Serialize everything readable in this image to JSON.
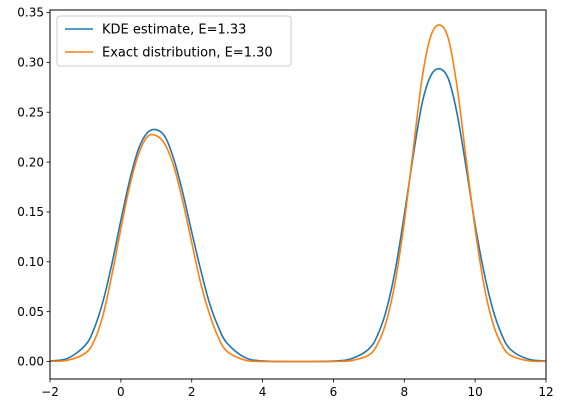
{
  "chart_data": {
    "type": "line",
    "title": "",
    "xlabel": "",
    "ylabel": "",
    "xlim": [
      -2,
      12
    ],
    "ylim": [
      -0.0175,
      0.3525
    ],
    "x_ticks": [
      -2,
      0,
      2,
      4,
      6,
      8,
      10,
      12
    ],
    "x_tick_labels": [
      "−2",
      "0",
      "2",
      "4",
      "6",
      "8",
      "10",
      "12"
    ],
    "y_ticks": [
      0.0,
      0.05,
      0.1,
      0.15,
      0.2,
      0.25,
      0.3,
      0.35
    ],
    "y_tick_labels": [
      "0.00",
      "0.05",
      "0.10",
      "0.15",
      "0.20",
      "0.25",
      "0.30",
      "0.35"
    ],
    "grid": false,
    "legend_position": "top-left",
    "x": [
      -2.0,
      -1.5,
      -1.0,
      -0.75,
      -0.5,
      -0.25,
      0.0,
      0.25,
      0.5,
      0.75,
      1.0,
      1.25,
      1.5,
      1.75,
      2.0,
      2.25,
      2.5,
      2.75,
      3.0,
      3.5,
      4.0,
      5.0,
      6.0,
      6.5,
      7.0,
      7.25,
      7.5,
      7.75,
      8.0,
      8.25,
      8.5,
      8.75,
      9.0,
      9.25,
      9.5,
      9.75,
      10.0,
      10.25,
      10.5,
      10.75,
      11.0,
      11.5,
      12.0
    ],
    "series": [
      {
        "name": "KDE estimate, E=1.33",
        "color": "#1f77b4",
        "values": [
          0.0006,
          0.0032,
          0.0165,
          0.0335,
          0.0608,
          0.0985,
          0.1416,
          0.1819,
          0.2133,
          0.2295,
          0.2325,
          0.2252,
          0.2023,
          0.1689,
          0.1299,
          0.0925,
          0.0588,
          0.0347,
          0.0182,
          0.0041,
          0.0006,
          0.0,
          0.0005,
          0.0028,
          0.0126,
          0.0268,
          0.0524,
          0.0926,
          0.1471,
          0.2058,
          0.2584,
          0.2868,
          0.2935,
          0.283,
          0.2468,
          0.1934,
          0.137,
          0.0896,
          0.0523,
          0.0271,
          0.012,
          0.0024,
          0.0006
        ]
      },
      {
        "name": "Exact distribution, E=1.30",
        "color": "#ff7f0e",
        "values": [
          0.0002,
          0.0013,
          0.0085,
          0.021,
          0.047,
          0.0875,
          0.133,
          0.1761,
          0.208,
          0.2255,
          0.2265,
          0.2175,
          0.1951,
          0.1602,
          0.1195,
          0.079,
          0.0478,
          0.0243,
          0.0101,
          0.0015,
          0.0001,
          0.0,
          0.0001,
          0.001,
          0.0065,
          0.0178,
          0.041,
          0.081,
          0.14,
          0.2115,
          0.2835,
          0.3265,
          0.3375,
          0.323,
          0.273,
          0.202,
          0.133,
          0.0765,
          0.0385,
          0.0168,
          0.0061,
          0.0008,
          0.0002
        ]
      }
    ]
  }
}
